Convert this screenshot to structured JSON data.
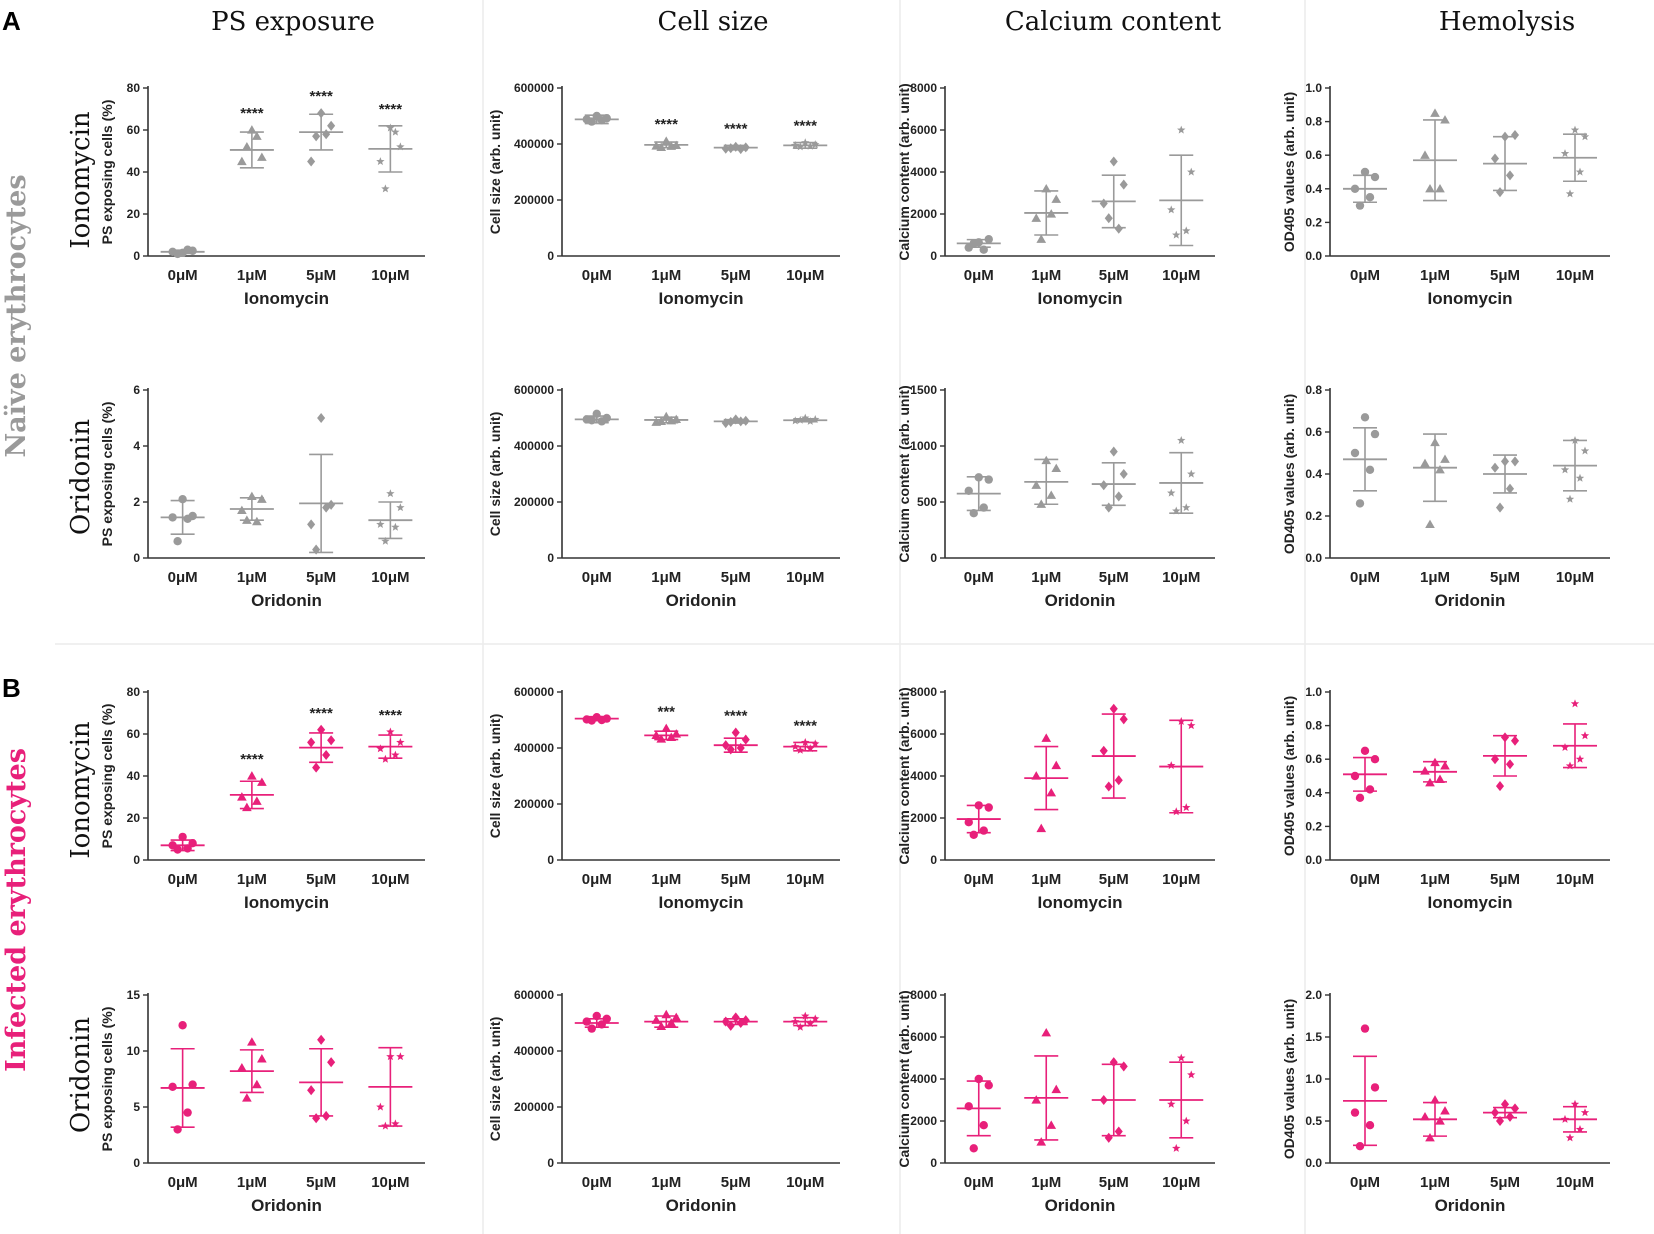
{
  "figure": {
    "column_headers": [
      "PS exposure",
      "Cell size",
      "Calcium content",
      "Hemolysis"
    ],
    "panel_labels": [
      "A",
      "B"
    ],
    "row_labels": [
      "Ionomycin",
      "Oridonin",
      "Ionomycin",
      "Oridonin"
    ],
    "group_labels": [
      {
        "text": "Naïve erythrocytes",
        "color": "#9a9a9a"
      },
      {
        "text": "Infected erythrocytes",
        "color": "#e8207a"
      }
    ],
    "colors": {
      "naive": "#9a9a9a",
      "infected": "#e8207a",
      "axis": "#333333"
    }
  },
  "chart_data": [
    {
      "id": "A-ion-ps",
      "type": "scatter",
      "color": "naive",
      "ylabel": "PS exposing cells (%)",
      "ylim": [
        0,
        80
      ],
      "yticks": [
        "0",
        "20",
        "40",
        "60",
        "80"
      ],
      "categories": [
        "0μM",
        "1μM",
        "5μM",
        "10μM"
      ],
      "xlabel": "Ionomycin",
      "marker": [
        "circle",
        "triangle",
        "diamond",
        "star"
      ],
      "points": [
        [
          1.5,
          2.5,
          2,
          3,
          1
        ],
        [
          60,
          47,
          45,
          57,
          52
        ],
        [
          68,
          62,
          45,
          58,
          57
        ],
        [
          61,
          52,
          45,
          59,
          32
        ]
      ],
      "mean": [
        2,
        50.5,
        59,
        51
      ],
      "sd": [
        0.8,
        8.5,
        8.5,
        11
      ],
      "sig": [
        "",
        "****",
        "****",
        "****"
      ]
    },
    {
      "id": "A-ion-size",
      "type": "scatter",
      "color": "naive",
      "ylabel": "Cell size (arb. unit)",
      "ylim": [
        0,
        600000
      ],
      "yticks": [
        "0",
        "200000",
        "400000",
        "600000"
      ],
      "categories": [
        "0μM",
        "1μM",
        "5μM",
        "10μM"
      ],
      "xlabel": "Ionomycin",
      "marker": [
        "circle",
        "triangle",
        "diamond",
        "star"
      ],
      "points": [
        [
          500000,
          492000,
          488000,
          485000,
          480000
        ],
        [
          410000,
          395000,
          393000,
          392000,
          388000
        ],
        [
          390000,
          388000,
          383000,
          382000,
          385000
        ],
        [
          405000,
          398000,
          395000,
          392000,
          390000
        ]
      ],
      "mean": [
        488000,
        397000,
        387000,
        395000
      ],
      "sd": [
        15000,
        10000,
        8000,
        10000
      ],
      "sig": [
        "",
        "****",
        "****",
        "****"
      ]
    },
    {
      "id": "A-ion-ca",
      "type": "scatter",
      "color": "naive",
      "ylabel": "Calcium content (arb. unit)",
      "ylim": [
        0,
        8000
      ],
      "yticks": [
        "0",
        "2000",
        "4000",
        "6000",
        "8000"
      ],
      "categories": [
        "0μM",
        "1μM",
        "5μM",
        "10μM"
      ],
      "xlabel": "Ionomycin",
      "marker": [
        "circle",
        "triangle",
        "diamond",
        "star"
      ],
      "points": [
        [
          650,
          800,
          400,
          300,
          600
        ],
        [
          3200,
          2700,
          1800,
          2000,
          800
        ],
        [
          4500,
          3400,
          2500,
          1300,
          1800
        ],
        [
          6000,
          4000,
          2200,
          1200,
          1000
        ]
      ],
      "mean": [
        600,
        2050,
        2600,
        2650
      ],
      "sd": [
        180,
        1050,
        1250,
        2150
      ],
      "sig": [
        "",
        "",
        "",
        ""
      ]
    },
    {
      "id": "A-ion-hem",
      "type": "scatter",
      "color": "naive",
      "ylabel": "OD405 values (arb. unit)",
      "ylim": [
        0,
        1.0
      ],
      "yticks": [
        "0.0",
        "0.2",
        "0.4",
        "0.6",
        "0.8",
        "1.0"
      ],
      "categories": [
        "0μM",
        "1μM",
        "5μM",
        "10μM"
      ],
      "xlabel": "Ionomycin",
      "marker": [
        "circle",
        "triangle",
        "diamond",
        "star"
      ],
      "points": [
        [
          0.5,
          0.47,
          0.4,
          0.35,
          0.3
        ],
        [
          0.85,
          0.81,
          0.6,
          0.4,
          0.4
        ],
        [
          0.71,
          0.72,
          0.58,
          0.48,
          0.38
        ],
        [
          0.75,
          0.71,
          0.61,
          0.5,
          0.37
        ]
      ],
      "mean": [
        0.4,
        0.57,
        0.55,
        0.585
      ],
      "sd": [
        0.08,
        0.24,
        0.16,
        0.14
      ],
      "sig": [
        "",
        "",
        "",
        ""
      ]
    },
    {
      "id": "A-ori-ps",
      "type": "scatter",
      "color": "naive",
      "ylabel": "PS exposing cells (%)",
      "ylim": [
        0,
        6
      ],
      "yticks": [
        "0",
        "2",
        "4",
        "6"
      ],
      "categories": [
        "0μM",
        "1μM",
        "5μM",
        "10μM"
      ],
      "xlabel": "Oridonin",
      "marker": [
        "circle",
        "triangle",
        "diamond",
        "star"
      ],
      "points": [
        [
          2.1,
          1.5,
          1.45,
          1.4,
          0.6
        ],
        [
          2.2,
          2.1,
          1.7,
          1.3,
          1.35
        ],
        [
          5,
          1.9,
          1.2,
          1.8,
          0.3
        ],
        [
          2.3,
          1.8,
          1.2,
          1.1,
          0.6
        ]
      ],
      "mean": [
        1.45,
        1.75,
        1.95,
        1.35
      ],
      "sd": [
        0.6,
        0.4,
        1.75,
        0.65
      ],
      "sig": [
        "",
        "",
        "",
        ""
      ]
    },
    {
      "id": "A-ori-size",
      "type": "scatter",
      "color": "naive",
      "ylabel": "Cell size (arb. unit)",
      "ylim": [
        0,
        600000
      ],
      "yticks": [
        "0",
        "200000",
        "400000",
        "600000"
      ],
      "categories": [
        "0μM",
        "1μM",
        "5μM",
        "10μM"
      ],
      "xlabel": "Oridonin",
      "marker": [
        "circle",
        "triangle",
        "diamond",
        "star"
      ],
      "points": [
        [
          515000,
          500000,
          495000,
          488000,
          492000
        ],
        [
          505000,
          495000,
          485000,
          490000,
          488000
        ],
        [
          495000,
          490000,
          482000,
          488000,
          486000
        ],
        [
          500000,
          495000,
          490000,
          488000,
          492000
        ]
      ],
      "mean": [
        495000,
        493000,
        488000,
        492000
      ],
      "sd": [
        12000,
        10000,
        6000,
        5000
      ],
      "sig": [
        "",
        "",
        "",
        ""
      ]
    },
    {
      "id": "A-ori-ca",
      "type": "scatter",
      "color": "naive",
      "ylabel": "Calcium content (arb. unit)",
      "ylim": [
        0,
        1500
      ],
      "yticks": [
        "0",
        "500",
        "1000",
        "1500"
      ],
      "categories": [
        "0μM",
        "1μM",
        "5μM",
        "10μM"
      ],
      "xlabel": "Oridonin",
      "marker": [
        "circle",
        "triangle",
        "diamond",
        "star"
      ],
      "points": [
        [
          720,
          700,
          600,
          450,
          400
        ],
        [
          870,
          800,
          650,
          560,
          480
        ],
        [
          950,
          750,
          650,
          550,
          450
        ],
        [
          1050,
          750,
          580,
          450,
          420
        ]
      ],
      "mean": [
        575,
        680,
        660,
        670
      ],
      "sd": [
        150,
        200,
        190,
        270
      ],
      "sig": [
        "",
        "",
        "",
        ""
      ]
    },
    {
      "id": "A-ori-hem",
      "type": "scatter",
      "color": "naive",
      "ylabel": "OD405 values (arb. unit)",
      "ylim": [
        0,
        0.8
      ],
      "yticks": [
        "0.0",
        "0.2",
        "0.4",
        "0.6",
        "0.8"
      ],
      "categories": [
        "0μM",
        "1μM",
        "5μM",
        "10μM"
      ],
      "xlabel": "Oridonin",
      "marker": [
        "circle",
        "triangle",
        "diamond",
        "star"
      ],
      "points": [
        [
          0.67,
          0.59,
          0.5,
          0.42,
          0.26
        ],
        [
          0.55,
          0.47,
          0.45,
          0.42,
          0.16
        ],
        [
          0.46,
          0.46,
          0.43,
          0.33,
          0.24
        ],
        [
          0.56,
          0.51,
          0.42,
          0.38,
          0.28
        ]
      ],
      "mean": [
        0.47,
        0.43,
        0.4,
        0.44
      ],
      "sd": [
        0.15,
        0.16,
        0.09,
        0.12
      ],
      "sig": [
        "",
        "",
        "",
        ""
      ]
    },
    {
      "id": "B-ion-ps",
      "type": "scatter",
      "color": "infected",
      "ylabel": "PS exposing cells (%)",
      "ylim": [
        0,
        80
      ],
      "yticks": [
        "0",
        "20",
        "40",
        "60",
        "80"
      ],
      "categories": [
        "0μM",
        "1μM",
        "5μM",
        "10μM"
      ],
      "xlabel": "Ionomycin",
      "marker": [
        "circle",
        "triangle",
        "diamond",
        "star"
      ],
      "points": [
        [
          11,
          8,
          7,
          5.5,
          5
        ],
        [
          40,
          37,
          30,
          28,
          25
        ],
        [
          62,
          57,
          56,
          50,
          44
        ],
        [
          61,
          56,
          53,
          50,
          48
        ]
      ],
      "mean": [
        7,
        31,
        53.5,
        54
      ],
      "sd": [
        2.5,
        6.5,
        7,
        5.5
      ],
      "sig": [
        "",
        "****",
        "****",
        "****"
      ]
    },
    {
      "id": "B-ion-size",
      "type": "scatter",
      "color": "infected",
      "ylabel": "Cell size (arb. unit)",
      "ylim": [
        0,
        600000
      ],
      "yticks": [
        "0",
        "200000",
        "400000",
        "600000"
      ],
      "categories": [
        "0μM",
        "1μM",
        "5μM",
        "10μM"
      ],
      "xlabel": "Ionomycin",
      "marker": [
        "circle",
        "triangle",
        "diamond",
        "star"
      ],
      "points": [
        [
          510000,
          505000,
          502000,
          500000,
          498000
        ],
        [
          470000,
          450000,
          445000,
          438000,
          432000
        ],
        [
          455000,
          430000,
          410000,
          400000,
          395000
        ],
        [
          420000,
          415000,
          405000,
          398000,
          392000
        ]
      ],
      "mean": [
        505000,
        445000,
        410000,
        405000
      ],
      "sd": [
        7000,
        15000,
        25000,
        15000
      ],
      "sig": [
        "",
        "***",
        "****",
        "****"
      ]
    },
    {
      "id": "B-ion-ca",
      "type": "scatter",
      "color": "infected",
      "ylabel": "Calcium content (arb. unit)",
      "ylim": [
        0,
        8000
      ],
      "yticks": [
        "0",
        "2000",
        "4000",
        "6000",
        "8000"
      ],
      "categories": [
        "0μM",
        "1μM",
        "5μM",
        "10μM"
      ],
      "xlabel": "Ionomycin",
      "marker": [
        "circle",
        "triangle",
        "diamond",
        "star"
      ],
      "points": [
        [
          2600,
          2500,
          1800,
          1400,
          1200
        ],
        [
          5800,
          4500,
          4000,
          3200,
          1500
        ],
        [
          7200,
          6700,
          5200,
          3800,
          3500
        ],
        [
          6600,
          6400,
          4500,
          2500,
          2300
        ]
      ],
      "mean": [
        1950,
        3900,
        4950,
        4450
      ],
      "sd": [
        650,
        1500,
        2000,
        2200
      ],
      "sig": [
        "",
        "",
        "",
        ""
      ]
    },
    {
      "id": "B-ion-hem",
      "type": "scatter",
      "color": "infected",
      "ylabel": "OD405 values (arb. unit)",
      "ylim": [
        0,
        1.0
      ],
      "yticks": [
        "0.0",
        "0.2",
        "0.4",
        "0.6",
        "0.8",
        "1.0"
      ],
      "categories": [
        "0μM",
        "1μM",
        "5μM",
        "10μM"
      ],
      "xlabel": "Ionomycin",
      "marker": [
        "circle",
        "triangle",
        "diamond",
        "star"
      ],
      "points": [
        [
          0.65,
          0.6,
          0.5,
          0.42,
          0.37
        ],
        [
          0.58,
          0.56,
          0.53,
          0.48,
          0.46
        ],
        [
          0.73,
          0.71,
          0.6,
          0.57,
          0.44
        ],
        [
          0.93,
          0.74,
          0.67,
          0.6,
          0.56
        ]
      ],
      "mean": [
        0.51,
        0.525,
        0.62,
        0.68
      ],
      "sd": [
        0.1,
        0.06,
        0.12,
        0.13
      ],
      "sig": [
        "",
        "",
        "",
        ""
      ]
    },
    {
      "id": "B-ori-ps",
      "type": "scatter",
      "color": "infected",
      "ylabel": "PS exposing cells (%)",
      "ylim": [
        0,
        15
      ],
      "yticks": [
        "0",
        "5",
        "10",
        "15"
      ],
      "categories": [
        "0μM",
        "1μM",
        "5μM",
        "10μM"
      ],
      "xlabel": "Oridonin",
      "marker": [
        "circle",
        "triangle",
        "diamond",
        "star"
      ],
      "points": [
        [
          12.3,
          7,
          6.8,
          4.5,
          3
        ],
        [
          10.8,
          9.3,
          8.5,
          7,
          5.8
        ],
        [
          11,
          9,
          6.5,
          4.2,
          4
        ],
        [
          9.5,
          9.5,
          5,
          3.5,
          3.3
        ]
      ],
      "mean": [
        6.7,
        8.2,
        7.2,
        6.8
      ],
      "sd": [
        3.5,
        1.9,
        3,
        3.5
      ],
      "sig": [
        "",
        "",
        "",
        ""
      ]
    },
    {
      "id": "B-ori-size",
      "type": "scatter",
      "color": "infected",
      "ylabel": "Cell size (arb. unit)",
      "ylim": [
        0,
        600000
      ],
      "yticks": [
        "0",
        "200000",
        "400000",
        "600000"
      ],
      "categories": [
        "0μM",
        "1μM",
        "5μM",
        "10μM"
      ],
      "xlabel": "Oridonin",
      "marker": [
        "circle",
        "triangle",
        "diamond",
        "star"
      ],
      "points": [
        [
          525000,
          515000,
          505000,
          495000,
          480000
        ],
        [
          530000,
          520000,
          510000,
          500000,
          488000
        ],
        [
          520000,
          510000,
          505000,
          500000,
          490000
        ],
        [
          525000,
          515000,
          505000,
          498000,
          485000
        ]
      ],
      "mean": [
        500000,
        505000,
        505000,
        505000
      ],
      "sd": [
        15000,
        20000,
        10000,
        14000
      ],
      "sig": [
        "",
        "",
        "",
        ""
      ]
    },
    {
      "id": "B-ori-ca",
      "type": "scatter",
      "color": "infected",
      "ylabel": "Calcium content (arb. unit)",
      "ylim": [
        0,
        8000
      ],
      "yticks": [
        "0",
        "2000",
        "4000",
        "6000",
        "8000"
      ],
      "categories": [
        "0μM",
        "1μM",
        "5μM",
        "10μM"
      ],
      "xlabel": "Oridonin",
      "marker": [
        "circle",
        "triangle",
        "diamond",
        "star"
      ],
      "points": [
        [
          4000,
          3700,
          2700,
          1800,
          700
        ],
        [
          6200,
          3500,
          3000,
          1800,
          1000
        ],
        [
          4800,
          4600,
          3000,
          1500,
          1200
        ],
        [
          5000,
          4200,
          2800,
          2000,
          700
        ]
      ],
      "mean": [
        2600,
        3100,
        3000,
        3000
      ],
      "sd": [
        1300,
        2000,
        1700,
        1800
      ],
      "sig": [
        "",
        "",
        "",
        ""
      ]
    },
    {
      "id": "B-ori-hem",
      "type": "scatter",
      "color": "infected",
      "ylabel": "OD405 values (arb. unit)",
      "ylim": [
        0,
        2.0
      ],
      "yticks": [
        "0.0",
        "0.5",
        "1.0",
        "1.5",
        "2.0"
      ],
      "categories": [
        "0μM",
        "1μM",
        "5μM",
        "10μM"
      ],
      "xlabel": "Oridonin",
      "marker": [
        "circle",
        "triangle",
        "diamond",
        "star"
      ],
      "points": [
        [
          1.6,
          0.9,
          0.6,
          0.45,
          0.2
        ],
        [
          0.75,
          0.62,
          0.55,
          0.5,
          0.3
        ],
        [
          0.7,
          0.65,
          0.6,
          0.55,
          0.5
        ],
        [
          0.7,
          0.6,
          0.52,
          0.4,
          0.3
        ]
      ],
      "mean": [
        0.74,
        0.52,
        0.6,
        0.52
      ],
      "sd": [
        0.53,
        0.2,
        0.06,
        0.15
      ],
      "sig": [
        "",
        "",
        "",
        ""
      ]
    }
  ]
}
